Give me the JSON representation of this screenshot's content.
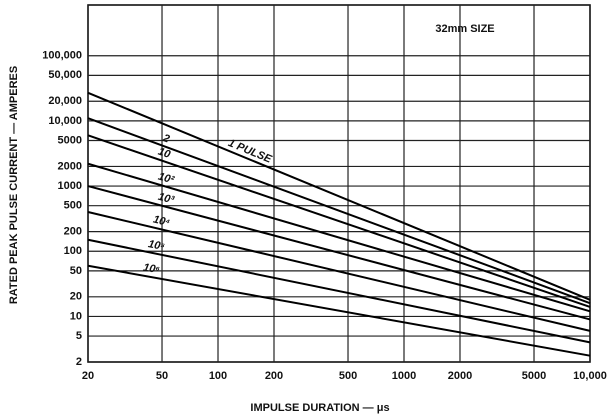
{
  "chart_data": {
    "type": "line",
    "x_label": "IMPULSE DURATION — μs",
    "y_label": "RATED PEAK PULSE CURRENT — AMPERES",
    "annotation": "32mm SIZE",
    "x": [
      20,
      10000
    ],
    "series": [
      {
        "name": "1 PULSE",
        "color": "#000000",
        "values": [
          27000,
          18
        ]
      },
      {
        "name": "2",
        "color": "#000000",
        "values": [
          11000,
          16
        ]
      },
      {
        "name": "10",
        "color": "#000000",
        "values": [
          6000,
          14
        ]
      },
      {
        "name": "10²",
        "color": "#000000",
        "values": [
          2200,
          12
        ]
      },
      {
        "name": "10³",
        "color": "#000000",
        "values": [
          1000,
          9
        ]
      },
      {
        "name": "10⁴",
        "color": "#000000",
        "values": [
          400,
          6
        ]
      },
      {
        "name": "10⁵",
        "color": "#000000",
        "values": [
          150,
          4
        ]
      },
      {
        "name": "10⁶",
        "color": "#000000",
        "values": [
          60,
          2.5
        ]
      }
    ],
    "xscale": "log",
    "yscale": "log",
    "xlim": [
      20,
      10000
    ],
    "ylim": [
      2,
      600000
    ],
    "xticks": [
      20,
      50,
      100,
      200,
      500,
      1000,
      2000,
      5000,
      {
        "value": 10000,
        "label": "10,000"
      }
    ],
    "yticks": [
      2,
      5,
      10,
      20,
      50,
      100,
      200,
      500,
      1000,
      2000,
      5000,
      {
        "value": 10000,
        "label": "10,000"
      },
      {
        "value": 20000,
        "label": "20,000"
      },
      {
        "value": 50000,
        "label": "50,000"
      },
      {
        "value": 100000,
        "label": "100,000"
      }
    ],
    "grid": true
  }
}
